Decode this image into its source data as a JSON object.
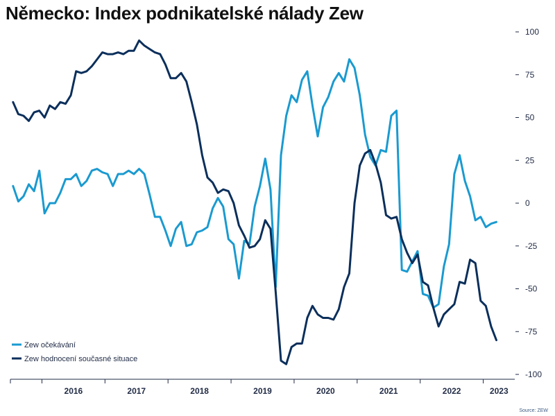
{
  "title": "Německo: Index podnikatelské nálady Zew",
  "source": "Source: ZEW",
  "colors": {
    "expectations": "#1a9ad0",
    "current": "#0b2f5b",
    "axis": "#1f2a44"
  },
  "chart_data": {
    "type": "line",
    "title": "Německo: Index podnikatelské nálady Zew",
    "ylim": [
      -100,
      100
    ],
    "yticks": [
      100,
      75,
      50,
      25,
      0,
      -25,
      -50,
      -75,
      -100
    ],
    "ytick_labels": [
      "100",
      "75",
      "50",
      "25",
      "0",
      "-25",
      "-50",
      "-75",
      "-100"
    ],
    "y_axis_position": "right",
    "x_start": "2015-07",
    "x_end": "2023-06",
    "xtick_labels": [
      "2016",
      "2017",
      "2018",
      "2019",
      "2020",
      "2021",
      "2022",
      "2023"
    ],
    "legend_position": "bottom-left",
    "grid": false,
    "series": [
      {
        "name": "Zew očekávání",
        "color": "#1a9ad0",
        "values": [
          10,
          1,
          4,
          11,
          7,
          19,
          -6,
          0,
          0,
          6,
          14,
          14,
          17,
          10,
          13,
          19,
          20,
          18,
          17,
          10,
          17,
          17,
          19,
          17,
          20,
          17,
          5,
          -8,
          -8,
          -16,
          -25,
          -15,
          -11,
          -25,
          -24,
          -17,
          -16,
          -14,
          -3,
          3,
          -2,
          -21,
          -24,
          -44,
          -22,
          -24,
          -2,
          10,
          26,
          8,
          -49,
          28,
          51,
          63,
          59,
          72,
          77,
          57,
          39,
          56,
          62,
          71,
          76,
          71,
          84,
          79,
          63,
          40,
          27,
          22,
          31,
          30,
          51,
          54,
          -39,
          -40,
          -34,
          -28,
          -53,
          -54,
          -61,
          -59,
          -37,
          -24,
          17,
          28,
          13,
          4,
          -10,
          -8,
          -14,
          -12,
          -11
        ]
      },
      {
        "name": "Zew hodnocení současné situace",
        "color": "#0b2f5b",
        "values": [
          59,
          52,
          51,
          48,
          53,
          54,
          50,
          57,
          55,
          59,
          58,
          63,
          77,
          76,
          77,
          80,
          84,
          88,
          87,
          87,
          88,
          87,
          89,
          89,
          95,
          92,
          90,
          88,
          87,
          81,
          73,
          73,
          76,
          71,
          59,
          46,
          28,
          15,
          12,
          6,
          8,
          7,
          0,
          -13,
          -19,
          -26,
          -25,
          -21,
          -10,
          -15,
          -52,
          -92,
          -94,
          -84,
          -82,
          -82,
          -67,
          -60,
          -65,
          -67,
          -67,
          -68,
          -62,
          -49,
          -41,
          0,
          22,
          29,
          31,
          23,
          12,
          -7,
          -9,
          -8,
          -21,
          -29,
          -35,
          -30,
          -46,
          -48,
          -61,
          -72,
          -65,
          -62,
          -59,
          -46,
          -47,
          -33,
          -35,
          -57,
          -60,
          -72,
          -80
        ]
      }
    ]
  }
}
